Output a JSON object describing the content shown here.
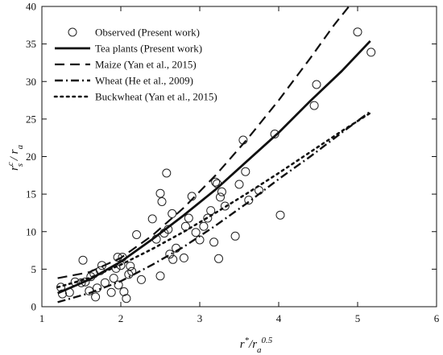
{
  "chart_data": {
    "type": "scatter",
    "xlabel": "r*/ra^0.5",
    "ylabel": "rsc / ra",
    "xlim": [
      1,
      6
    ],
    "ylim": [
      0,
      40
    ],
    "x_ticks": [
      1,
      2,
      3,
      4,
      5,
      6
    ],
    "y_ticks": [
      0,
      5,
      10,
      15,
      20,
      25,
      30,
      35,
      40
    ],
    "grid": false,
    "legend_position": "top-left",
    "legend": [
      {
        "label": "Observed  (Present work)",
        "style": "open-circle"
      },
      {
        "label": "Tea plants (Present work)",
        "style": "solid"
      },
      {
        "label": "Maize (Yan et al., 2015)",
        "style": "dash"
      },
      {
        "label": "Wheat (He et al., 2009)",
        "style": "dash-dot"
      },
      {
        "label": "Buckwheat (Yan et al., 2015)",
        "style": "dot"
      }
    ],
    "series": [
      {
        "name": "Observed  (Present work)",
        "kind": "scatter",
        "points": [
          [
            1.24,
            2.6
          ],
          [
            1.26,
            1.7
          ],
          [
            1.35,
            1.9
          ],
          [
            1.42,
            3.3
          ],
          [
            1.5,
            3.2
          ],
          [
            1.52,
            6.2
          ],
          [
            1.55,
            3.3
          ],
          [
            1.6,
            2.1
          ],
          [
            1.62,
            4.0
          ],
          [
            1.66,
            4.4
          ],
          [
            1.68,
            1.3
          ],
          [
            1.7,
            2.5
          ],
          [
            1.74,
            4.8
          ],
          [
            1.76,
            5.5
          ],
          [
            1.8,
            3.2
          ],
          [
            1.88,
            1.9
          ],
          [
            1.91,
            3.8
          ],
          [
            1.94,
            5.1
          ],
          [
            1.96,
            6.6
          ],
          [
            1.97,
            2.9
          ],
          [
            2.0,
            5.5
          ],
          [
            2.02,
            6.6
          ],
          [
            2.04,
            2.0
          ],
          [
            2.07,
            1.1
          ],
          [
            2.1,
            4.3
          ],
          [
            2.12,
            5.4
          ],
          [
            2.14,
            4.7
          ],
          [
            2.2,
            9.6
          ],
          [
            2.26,
            3.6
          ],
          [
            2.4,
            11.7
          ],
          [
            2.45,
            9.0
          ],
          [
            2.5,
            15.1
          ],
          [
            2.52,
            14.0
          ],
          [
            2.5,
            4.1
          ],
          [
            2.55,
            9.8
          ],
          [
            2.58,
            17.8
          ],
          [
            2.6,
            10.3
          ],
          [
            2.62,
            7.0
          ],
          [
            2.65,
            12.4
          ],
          [
            2.66,
            6.3
          ],
          [
            2.7,
            7.8
          ],
          [
            2.8,
            6.5
          ],
          [
            2.82,
            10.7
          ],
          [
            2.86,
            11.8
          ],
          [
            2.9,
            14.7
          ],
          [
            2.95,
            9.9
          ],
          [
            3.0,
            8.9
          ],
          [
            3.05,
            10.7
          ],
          [
            3.1,
            11.8
          ],
          [
            3.14,
            12.8
          ],
          [
            3.18,
            8.6
          ],
          [
            3.2,
            16.6
          ],
          [
            3.22,
            16.4
          ],
          [
            3.24,
            6.4
          ],
          [
            3.26,
            14.6
          ],
          [
            3.28,
            15.3
          ],
          [
            3.32,
            13.4
          ],
          [
            3.45,
            9.4
          ],
          [
            3.5,
            16.3
          ],
          [
            3.55,
            22.2
          ],
          [
            3.58,
            18.0
          ],
          [
            3.62,
            14.2
          ],
          [
            3.75,
            15.5
          ],
          [
            3.95,
            23.0
          ],
          [
            4.02,
            12.2
          ],
          [
            4.45,
            26.8
          ],
          [
            4.48,
            29.6
          ],
          [
            5.0,
            36.6
          ],
          [
            5.17,
            33.9
          ]
        ]
      },
      {
        "name": "Tea plants (Present work)",
        "kind": "line",
        "style": "solid",
        "points": [
          [
            1.2,
            1.8
          ],
          [
            1.6,
            3.6
          ],
          [
            2.0,
            6.0
          ],
          [
            2.4,
            9.0
          ],
          [
            2.8,
            12.2
          ],
          [
            3.2,
            15.6
          ],
          [
            3.6,
            19.4
          ],
          [
            4.0,
            23.2
          ],
          [
            4.4,
            27.4
          ],
          [
            4.8,
            31.4
          ],
          [
            5.16,
            35.4
          ]
        ]
      },
      {
        "name": "Maize (Yan et al., 2015)",
        "kind": "line",
        "style": "dash",
        "points": [
          [
            1.2,
            3.8
          ],
          [
            1.6,
            4.6
          ],
          [
            2.0,
            6.5
          ],
          [
            2.4,
            9.5
          ],
          [
            2.8,
            13.2
          ],
          [
            3.2,
            17.5
          ],
          [
            3.6,
            22.3
          ],
          [
            4.0,
            27.5
          ],
          [
            4.4,
            33.1
          ],
          [
            4.7,
            37.5
          ],
          [
            4.89,
            40.0
          ]
        ]
      },
      {
        "name": "Wheat (He et al., 2009)",
        "kind": "line",
        "style": "dash-dot",
        "points": [
          [
            1.2,
            0.6
          ],
          [
            1.6,
            1.8
          ],
          [
            2.0,
            3.4
          ],
          [
            2.4,
            5.6
          ],
          [
            2.8,
            8.0
          ],
          [
            3.2,
            10.8
          ],
          [
            3.6,
            13.8
          ],
          [
            4.0,
            17.0
          ],
          [
            4.4,
            20.0
          ],
          [
            4.8,
            23.2
          ],
          [
            5.16,
            26.0
          ]
        ]
      },
      {
        "name": "Buckwheat (Yan et al., 2015)",
        "kind": "line",
        "style": "dot",
        "points": [
          [
            1.2,
            2.6
          ],
          [
            1.6,
            3.8
          ],
          [
            2.0,
            5.6
          ],
          [
            2.4,
            7.7
          ],
          [
            2.8,
            10.0
          ],
          [
            3.2,
            12.5
          ],
          [
            3.6,
            15.1
          ],
          [
            4.0,
            17.8
          ],
          [
            4.4,
            20.6
          ],
          [
            4.8,
            23.4
          ],
          [
            5.16,
            25.8
          ]
        ]
      }
    ]
  }
}
